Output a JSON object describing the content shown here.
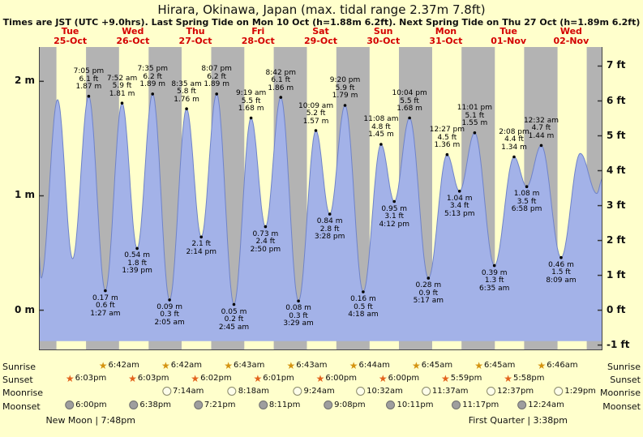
{
  "header": {
    "title": "Hirara, Okinawa, Japan (max. tidal range 2.37m 7.8ft)",
    "subtitle": "Times are JST (UTC +9.0hrs). Last Spring Tide on Mon 10 Oct (h=1.88m 6.2ft). Next Spring Tide on Thu 27 Oct (h=1.89m 6.2ft)"
  },
  "colors": {
    "page_bg": "#ffffcc",
    "night_band": "#b3b3b3",
    "tide_fill": "#a3b2e8",
    "tide_stroke": "#6f83c9",
    "day_label_red": "#d40000",
    "sunrise_star": "#d4930f",
    "sunset_star": "#e2621b"
  },
  "chart_data": {
    "type": "area",
    "title": "Hirara, Okinawa, Japan (max. tidal range 2.37m 7.8ft)",
    "x_days": [
      {
        "dow": "Tue",
        "date": "25-Oct"
      },
      {
        "dow": "Wed",
        "date": "26-Oct"
      },
      {
        "dow": "Thu",
        "date": "27-Oct"
      },
      {
        "dow": "Fri",
        "date": "28-Oct"
      },
      {
        "dow": "Sat",
        "date": "29-Oct"
      },
      {
        "dow": "Sun",
        "date": "30-Oct"
      },
      {
        "dow": "Mon",
        "date": "31-Oct"
      },
      {
        "dow": "Tue",
        "date": "01-Nov"
      },
      {
        "dow": "Wed",
        "date": "02-Nov"
      }
    ],
    "y_left_ticks": [
      {
        "label": "2 m",
        "value": 2
      },
      {
        "label": "1 m",
        "value": 1
      },
      {
        "label": "0 m",
        "value": 0
      }
    ],
    "y_right_ticks": [
      {
        "label": "7 ft",
        "feet": 7
      },
      {
        "label": "6 ft",
        "feet": 6
      },
      {
        "label": "5 ft",
        "feet": 5
      },
      {
        "label": "4 ft",
        "feet": 4
      },
      {
        "label": "3 ft",
        "feet": 3
      },
      {
        "label": "2 ft",
        "feet": 2
      },
      {
        "label": "1 ft",
        "feet": 1
      },
      {
        "label": "0 ft",
        "feet": 0
      },
      {
        "label": "-1 ft",
        "feet": -1
      }
    ],
    "y_range_m": [
      -0.35,
      2.3
    ],
    "night_shading": true,
    "tide_events": [
      {
        "day": 0,
        "time": "12:00am",
        "m": 0.5,
        "kind": "edge",
        "label": null
      },
      {
        "day": 0,
        "time": "12:49am",
        "m": 0.28,
        "kind": "low",
        "label": null
      },
      {
        "day": 0,
        "time": "7:09am",
        "m": 1.84,
        "kind": "high",
        "label": null
      },
      {
        "day": 0,
        "time": "12:55pm",
        "m": 0.45,
        "kind": "low",
        "label": null
      },
      {
        "day": 0,
        "time": "7:05pm",
        "m": 1.87,
        "kind": "high",
        "label": [
          "7:05 pm",
          "6.1 ft",
          "1.87 m"
        ]
      },
      {
        "day": 1,
        "time": "1:27am",
        "m": 0.17,
        "kind": "low",
        "label": [
          "0.17 m",
          "0.6 ft",
          "1:27 am"
        ]
      },
      {
        "day": 1,
        "time": "7:52am",
        "m": 1.81,
        "kind": "high",
        "label": [
          "7:52 am",
          "5.9 ft",
          "1.81 m"
        ]
      },
      {
        "day": 1,
        "time": "1:39pm",
        "m": 0.54,
        "kind": "low",
        "label": [
          "0.54 m",
          "1.8 ft",
          "1:39 pm"
        ]
      },
      {
        "day": 1,
        "time": "7:35pm",
        "m": 1.89,
        "kind": "high",
        "label": [
          "7:35 pm",
          "6.2 ft",
          "1.89 m"
        ]
      },
      {
        "day": 2,
        "time": "2:05am",
        "m": 0.09,
        "kind": "low",
        "label": [
          "0.09 m",
          "0.3 ft",
          "2:05 am"
        ]
      },
      {
        "day": 2,
        "time": "8:35am",
        "m": 1.76,
        "kind": "high",
        "label": [
          "8:35 am",
          "5.8 ft",
          "1.76 m"
        ]
      },
      {
        "day": 2,
        "time": "2:14pm",
        "m": 0.64,
        "kind": "low",
        "label": [
          "2.1 ft",
          "2:14 pm"
        ]
      },
      {
        "day": 2,
        "time": "8:07pm",
        "m": 1.89,
        "kind": "high",
        "label": [
          "8:07 pm",
          "6.2 ft",
          "1.89 m"
        ]
      },
      {
        "day": 3,
        "time": "2:45am",
        "m": 0.05,
        "kind": "low",
        "label": [
          "0.05 m",
          "0.2 ft",
          "2:45 am"
        ]
      },
      {
        "day": 3,
        "time": "9:19am",
        "m": 1.68,
        "kind": "high",
        "label": [
          "9:19 am",
          "5.5 ft",
          "1.68 m"
        ]
      },
      {
        "day": 3,
        "time": "2:50pm",
        "m": 0.73,
        "kind": "low",
        "label": [
          "0.73 m",
          "2.4 ft",
          "2:50 pm"
        ]
      },
      {
        "day": 3,
        "time": "8:42pm",
        "m": 1.86,
        "kind": "high",
        "label": [
          "8:42 pm",
          "6.1 ft",
          "1.86 m"
        ]
      },
      {
        "day": 4,
        "time": "3:29am",
        "m": 0.08,
        "kind": "low",
        "label": [
          "0.08 m",
          "0.3 ft",
          "3:29 am"
        ]
      },
      {
        "day": 4,
        "time": "10:09am",
        "m": 1.57,
        "kind": "high",
        "label": [
          "10:09 am",
          "5.2 ft",
          "1.57 m"
        ]
      },
      {
        "day": 4,
        "time": "3:28pm",
        "m": 0.84,
        "kind": "low",
        "label": [
          "0.84 m",
          "2.8 ft",
          "3:28 pm"
        ]
      },
      {
        "day": 4,
        "time": "9:20pm",
        "m": 1.79,
        "kind": "high",
        "label": [
          "9:20 pm",
          "5.9 ft",
          "1.79 m"
        ]
      },
      {
        "day": 5,
        "time": "4:18am",
        "m": 0.16,
        "kind": "low",
        "label": [
          "0.16 m",
          "0.5 ft",
          "4:18 am"
        ]
      },
      {
        "day": 5,
        "time": "11:08am",
        "m": 1.45,
        "kind": "high",
        "label": [
          "11:08 am",
          "4.8 ft",
          "1.45 m"
        ]
      },
      {
        "day": 5,
        "time": "4:12pm",
        "m": 0.95,
        "kind": "low",
        "label": [
          "0.95 m",
          "3.1 ft",
          "4:12 pm"
        ]
      },
      {
        "day": 5,
        "time": "10:04pm",
        "m": 1.68,
        "kind": "high",
        "label": [
          "10:04 pm",
          "5.5 ft",
          "1.68 m"
        ]
      },
      {
        "day": 6,
        "time": "5:17am",
        "m": 0.28,
        "kind": "low",
        "label": [
          "0.28 m",
          "0.9 ft",
          "5:17 am"
        ]
      },
      {
        "day": 6,
        "time": "12:27pm",
        "m": 1.36,
        "kind": "high",
        "label": [
          "12:27 pm",
          "4.5 ft",
          "1.36 m"
        ]
      },
      {
        "day": 6,
        "time": "5:13pm",
        "m": 1.04,
        "kind": "low",
        "label": [
          "1.04 m",
          "3.4 ft",
          "5:13 pm"
        ]
      },
      {
        "day": 6,
        "time": "11:01pm",
        "m": 1.55,
        "kind": "high",
        "label": [
          "11:01 pm",
          "5.1 ft",
          "1.55 m"
        ]
      },
      {
        "day": 7,
        "time": "6:35am",
        "m": 0.39,
        "kind": "low",
        "label": [
          "0.39 m",
          "1.3 ft",
          "6:35 am"
        ]
      },
      {
        "day": 7,
        "time": "2:08pm",
        "m": 1.34,
        "kind": "high",
        "label": [
          "2:08 pm",
          "4.4 ft",
          "1.34 m"
        ]
      },
      {
        "day": 7,
        "time": "6:58pm",
        "m": 1.08,
        "kind": "low",
        "label": [
          "1.08 m",
          "3.5 ft",
          "6:58 pm"
        ]
      },
      {
        "day": 8,
        "time": "12:32am",
        "m": 1.44,
        "kind": "high",
        "label": [
          "12:32 am",
          "4.7 ft",
          "1.44 m"
        ]
      },
      {
        "day": 8,
        "time": "8:09am",
        "m": 0.46,
        "kind": "low",
        "label": [
          "0.46 m",
          "1.5 ft",
          "8:09 am"
        ]
      },
      {
        "day": 8,
        "time": "3:30pm",
        "m": 1.37,
        "kind": "high",
        "label": null
      },
      {
        "day": 8,
        "time": "9:50pm",
        "m": 1.02,
        "kind": "low",
        "label": null
      },
      {
        "day": 9,
        "time": "12:00am",
        "m": 1.15,
        "kind": "edge",
        "label": null
      }
    ]
  },
  "astro": {
    "rows": [
      {
        "id": "sunrise",
        "label": "Sunrise",
        "icon": "star-sunrise",
        "entries": [
          {
            "day": 1,
            "time": "6:42am"
          },
          {
            "day": 2,
            "time": "6:42am"
          },
          {
            "day": 3,
            "time": "6:43am"
          },
          {
            "day": 4,
            "time": "6:43am"
          },
          {
            "day": 5,
            "time": "6:44am"
          },
          {
            "day": 6,
            "time": "6:45am"
          },
          {
            "day": 7,
            "time": "6:45am"
          },
          {
            "day": 8,
            "time": "6:46am"
          }
        ]
      },
      {
        "id": "sunset",
        "label": "Sunset",
        "icon": "star-sunset",
        "entries": [
          {
            "day": 0,
            "time": "6:03pm"
          },
          {
            "day": 1,
            "time": "6:03pm"
          },
          {
            "day": 2,
            "time": "6:02pm"
          },
          {
            "day": 3,
            "time": "6:01pm"
          },
          {
            "day": 4,
            "time": "6:00pm"
          },
          {
            "day": 5,
            "time": "6:00pm"
          },
          {
            "day": 6,
            "time": "5:59pm"
          },
          {
            "day": 7,
            "time": "5:58pm"
          }
        ]
      },
      {
        "id": "moonrise",
        "label": "Moonrise",
        "icon": "moon-light",
        "entries": [
          {
            "day": 2,
            "time": "7:14am"
          },
          {
            "day": 3,
            "time": "8:18am"
          },
          {
            "day": 4,
            "time": "9:24am"
          },
          {
            "day": 5,
            "time": "10:32am"
          },
          {
            "day": 6,
            "time": "11:37am"
          },
          {
            "day": 7,
            "time": "12:37pm"
          },
          {
            "day": 8,
            "time": "1:29pm"
          }
        ]
      },
      {
        "id": "moonset",
        "label": "Moonset",
        "icon": "moon-dark",
        "entries": [
          {
            "day": 0,
            "time": "6:00pm"
          },
          {
            "day": 1,
            "time": "6:38pm"
          },
          {
            "day": 2,
            "time": "7:21pm"
          },
          {
            "day": 3,
            "time": "8:11pm"
          },
          {
            "day": 4,
            "time": "9:08pm"
          },
          {
            "day": 5,
            "time": "10:11pm"
          },
          {
            "day": 6,
            "time": "11:17pm"
          },
          {
            "day": 8,
            "time": "12:24am"
          }
        ]
      }
    ],
    "phases": [
      {
        "name": "New Moon",
        "time": "7:48pm",
        "day": 0,
        "text": "New Moon | 7:48pm"
      },
      {
        "name": "First Quarter",
        "time": "3:38pm",
        "day": 7,
        "text": "First Quarter | 3:38pm"
      }
    ]
  }
}
